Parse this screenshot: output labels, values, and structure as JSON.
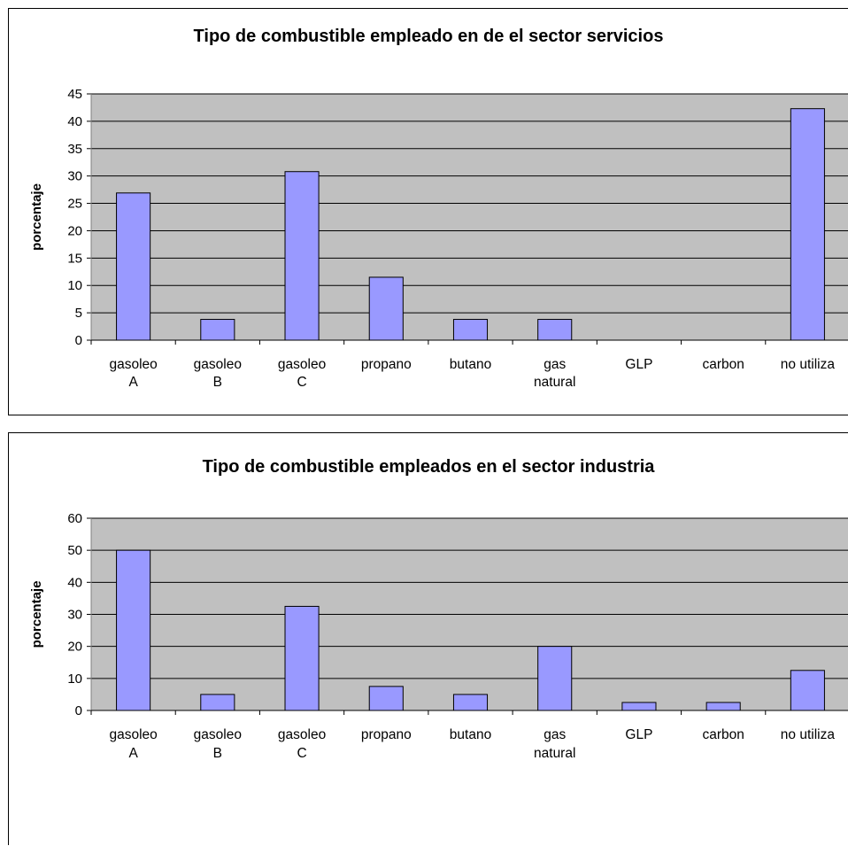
{
  "chart_data": [
    {
      "type": "bar",
      "title": "Tipo de combustible empleado en de el sector servicios",
      "ylabel": "porcentaje",
      "xlabel": "",
      "categories": [
        [
          "gasoleo",
          "A"
        ],
        [
          "gasoleo",
          "B"
        ],
        [
          "gasoleo",
          "C"
        ],
        [
          "propano"
        ],
        [
          "butano"
        ],
        [
          "gas",
          "natural"
        ],
        [
          "GLP"
        ],
        [
          "carbon"
        ],
        [
          "no utiliza"
        ]
      ],
      "values": [
        26.9,
        3.8,
        30.8,
        11.5,
        3.8,
        3.8,
        0,
        0,
        42.3
      ],
      "ylim": [
        0,
        45
      ],
      "yticks": [
        0,
        5,
        10,
        15,
        20,
        25,
        30,
        35,
        40,
        45
      ],
      "grid": true,
      "colors": {
        "bar": "#9999ff",
        "plot_bg": "#c0c0c0",
        "grid": "#000000"
      }
    },
    {
      "type": "bar",
      "title": "Tipo de combustible empleados en el sector industria",
      "ylabel": "porcentaje",
      "xlabel": "",
      "categories": [
        [
          "gasoleo",
          "A"
        ],
        [
          "gasoleo",
          "B"
        ],
        [
          "gasoleo",
          "C"
        ],
        [
          "propano"
        ],
        [
          "butano"
        ],
        [
          "gas",
          "natural"
        ],
        [
          "GLP"
        ],
        [
          "carbon"
        ],
        [
          "no utiliza"
        ]
      ],
      "values": [
        50,
        5,
        32.5,
        7.5,
        5,
        20,
        2.5,
        2.5,
        12.5
      ],
      "ylim": [
        0,
        60
      ],
      "yticks": [
        0,
        10,
        20,
        30,
        40,
        50,
        60
      ],
      "grid": true,
      "colors": {
        "bar": "#9999ff",
        "plot_bg": "#c0c0c0",
        "grid": "#000000"
      }
    }
  ]
}
